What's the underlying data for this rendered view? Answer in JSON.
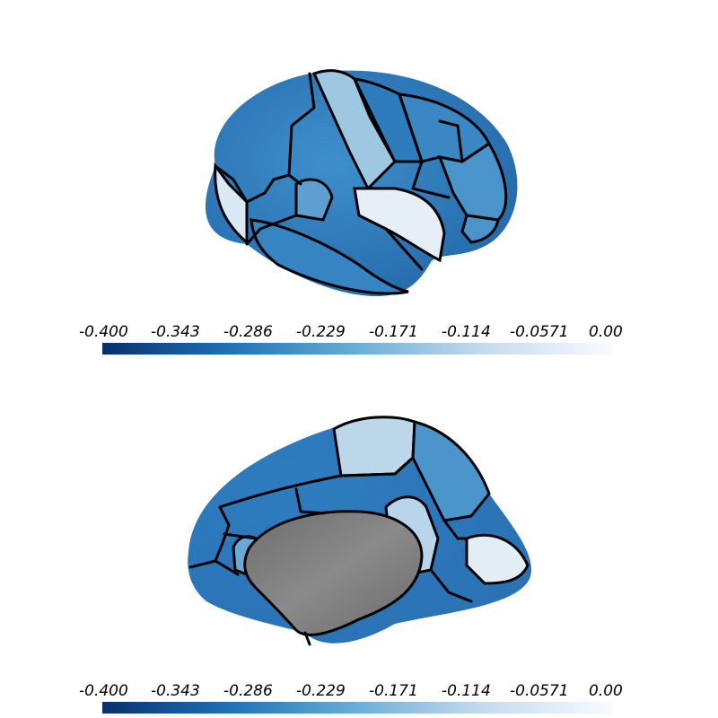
{
  "views": [
    {
      "name": "lateral-view",
      "colorbar": {
        "ticks": [
          "-0.400",
          "-0.343",
          "-0.286",
          "-0.229",
          "-0.171",
          "-0.114",
          "-0.0571",
          "0.00"
        ],
        "min": -0.4,
        "max": 0.0,
        "colormap": "Blues_r"
      }
    },
    {
      "name": "medial-view",
      "colorbar": {
        "ticks": [
          "-0.400",
          "-0.343",
          "-0.286",
          "-0.229",
          "-0.171",
          "-0.114",
          "-0.0571",
          "0.00"
        ],
        "min": -0.4,
        "max": 0.0,
        "colormap": "Blues_r"
      }
    }
  ],
  "colors": {
    "outline": "#000000",
    "medial_wall": "#7a7a7a",
    "background": "#ffffff"
  }
}
